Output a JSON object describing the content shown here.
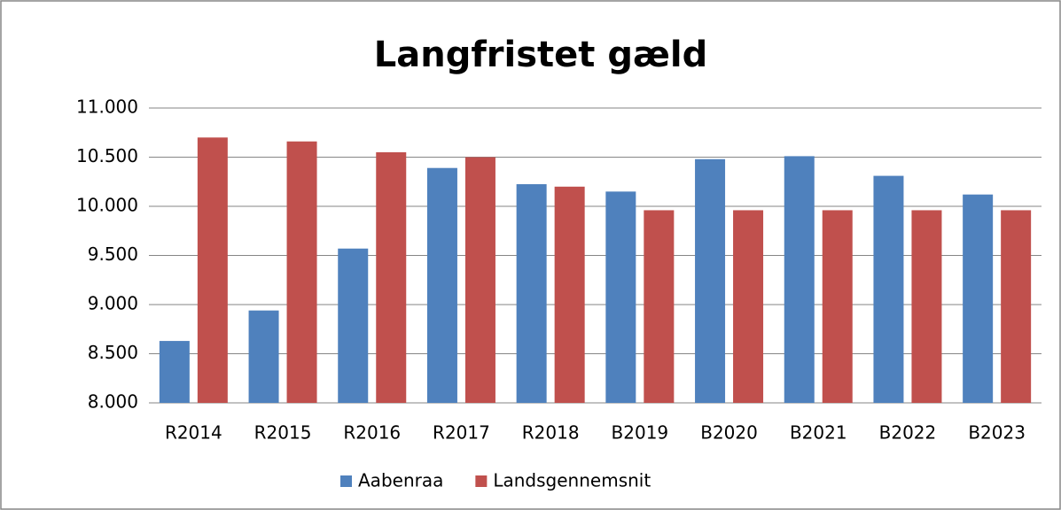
{
  "chart_data": {
    "type": "bar",
    "title": "Langfristet gæld",
    "categories": [
      "R2014",
      "R2015",
      "R2016",
      "R2017",
      "R2018",
      "B2019",
      "B2020",
      "B2021",
      "B2022",
      "B2023"
    ],
    "series": [
      {
        "name": "Aabenraa",
        "color": "#4f81bd",
        "values": [
          8630,
          8940,
          9570,
          10390,
          10225,
          10150,
          10480,
          10510,
          10310,
          10120
        ]
      },
      {
        "name": "Landsgennemsnit",
        "color": "#c0504d",
        "values": [
          10700,
          10660,
          10550,
          10500,
          10200,
          9960,
          9960,
          9960,
          9960,
          9960
        ]
      }
    ],
    "ylim": [
      8000,
      11000
    ],
    "yticks": [
      {
        "value": 8000,
        "label": "8.000"
      },
      {
        "value": 8500,
        "label": "8.500"
      },
      {
        "value": 9000,
        "label": "9.000"
      },
      {
        "value": 9500,
        "label": "9.500"
      },
      {
        "value": 10000,
        "label": "10.000"
      },
      {
        "value": 10500,
        "label": "10.500"
      },
      {
        "value": 11000,
        "label": "11.000"
      }
    ],
    "grid": true,
    "legend": "bottom"
  }
}
